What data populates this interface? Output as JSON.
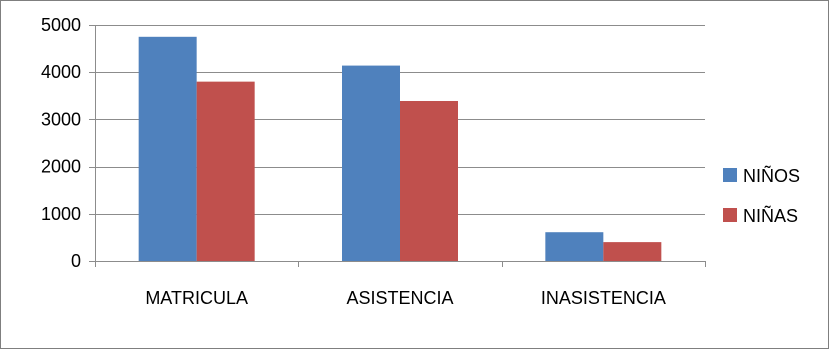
{
  "chart_data": {
    "type": "bar",
    "title": "",
    "xlabel": "",
    "ylabel": "",
    "categories": [
      "MATRICULA",
      "ASISTENCIA",
      "INASISTENCIA"
    ],
    "series": [
      {
        "name": "NIÑOS",
        "color": "#4f81bd",
        "values": [
          4750,
          4140,
          610
        ]
      },
      {
        "name": "NIÑAS",
        "color": "#c0504d",
        "values": [
          3800,
          3390,
          400
        ]
      }
    ],
    "yticks": [
      0,
      1000,
      2000,
      3000,
      4000,
      5000
    ],
    "ylim": [
      0,
      5000
    ],
    "grid": true,
    "legend": "right"
  }
}
